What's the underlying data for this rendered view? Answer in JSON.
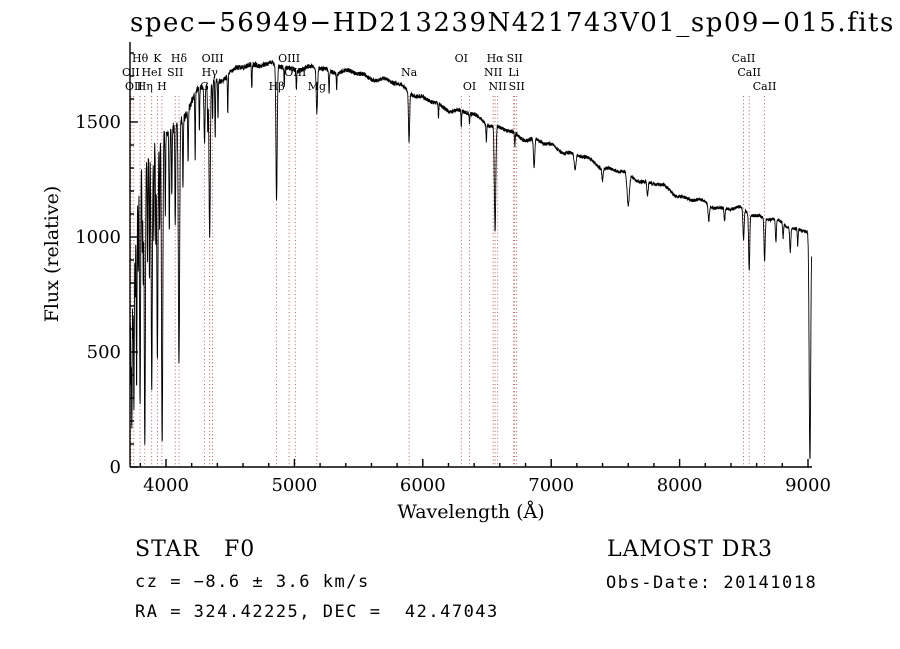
{
  "title": "spec−56949−HD213239N421743V01_sp09−015.fits",
  "axes": {
    "xlabel": "Wavelength (Å)",
    "ylabel": "Flux (relative)"
  },
  "annotations": {
    "class_line": "STAR   F0",
    "survey": "LAMOST DR3",
    "cz": "cz = −8.6 ± 3.6 km/s",
    "obs_date": "Obs-Date: 20141018",
    "coords": "RA = 324.42225, DEC =  42.47043"
  },
  "chart_data": {
    "type": "line",
    "title": "spec−56949−HD213239N421743V01_sp09−015.fits",
    "xlabel": "Wavelength (Å)",
    "ylabel": "Flux (relative)",
    "xlim": [
      3720,
      9030
    ],
    "ylim": [
      0,
      1850
    ],
    "xticks": [
      4000,
      5000,
      6000,
      7000,
      8000,
      9000
    ],
    "yticks": [
      0,
      500,
      1000,
      1500
    ],
    "x_minor_step": 200,
    "y_minor_step": 100,
    "line_color": "#000000",
    "feature_line_color": "#a03a32",
    "features": [
      {
        "label": "OII",
        "wl": 3727,
        "row": 2
      },
      {
        "label": "OII",
        "wl": 3749,
        "row": 3
      },
      {
        "label": "Hθ",
        "wl": 3798,
        "row": 1
      },
      {
        "label": "Hη",
        "wl": 3835,
        "row": 3
      },
      {
        "label": "HeI",
        "wl": 3889,
        "row": 2
      },
      {
        "label": "K",
        "wl": 3933,
        "row": 1
      },
      {
        "label": "H",
        "wl": 3968,
        "row": 3
      },
      {
        "label": "SII",
        "wl": 4072,
        "row": 2
      },
      {
        "label": "Hδ",
        "wl": 4101,
        "row": 1
      },
      {
        "label": "G",
        "wl": 4300,
        "row": 3
      },
      {
        "label": "Hγ",
        "wl": 4340,
        "row": 2
      },
      {
        "label": "OIII",
        "wl": 4363,
        "row": 1
      },
      {
        "label": "Hβ",
        "wl": 4861,
        "row": 3
      },
      {
        "label": "OIII",
        "wl": 4959,
        "row": 1
      },
      {
        "label": "OIII",
        "wl": 5007,
        "row": 2
      },
      {
        "label": "Mg",
        "wl": 5175,
        "row": 3
      },
      {
        "label": "Na",
        "wl": 5893,
        "row": 2
      },
      {
        "label": "OI",
        "wl": 6300,
        "row": 1
      },
      {
        "label": "OI",
        "wl": 6364,
        "row": 3
      },
      {
        "label": "NII",
        "wl": 6548,
        "row": 2
      },
      {
        "label": "Hα",
        "wl": 6563,
        "row": 1
      },
      {
        "label": "NII",
        "wl": 6583,
        "row": 3
      },
      {
        "label": "Li",
        "wl": 6708,
        "row": 2
      },
      {
        "label": "SII",
        "wl": 6716,
        "row": 1
      },
      {
        "label": "SII",
        "wl": 6731,
        "row": 3
      },
      {
        "label": "CaII",
        "wl": 8498,
        "row": 1
      },
      {
        "label": "CaII",
        "wl": 8542,
        "row": 2
      },
      {
        "label": "CaII",
        "wl": 8662,
        "row": 3
      }
    ],
    "continuum": [
      [
        3715,
        700
      ],
      [
        3725,
        950
      ],
      [
        3745,
        1180
      ],
      [
        3770,
        1260
      ],
      [
        3800,
        1320
      ],
      [
        3850,
        1370
      ],
      [
        3900,
        1400
      ],
      [
        3950,
        1430
      ],
      [
        4000,
        1460
      ],
      [
        4080,
        1490
      ],
      [
        4160,
        1550
      ],
      [
        4260,
        1630
      ],
      [
        4360,
        1670
      ],
      [
        4460,
        1700
      ],
      [
        4560,
        1730
      ],
      [
        4660,
        1755
      ],
      [
        4760,
        1760
      ],
      [
        4860,
        1740
      ],
      [
        4960,
        1730
      ],
      [
        5060,
        1730
      ],
      [
        5160,
        1730
      ],
      [
        5260,
        1730
      ],
      [
        5360,
        1725
      ],
      [
        5460,
        1715
      ],
      [
        5560,
        1700
      ],
      [
        5660,
        1685
      ],
      [
        5760,
        1665
      ],
      [
        5860,
        1650
      ],
      [
        5960,
        1615
      ],
      [
        6060,
        1590
      ],
      [
        6160,
        1570
      ],
      [
        6260,
        1550
      ],
      [
        6360,
        1530
      ],
      [
        6460,
        1510
      ],
      [
        6560,
        1480
      ],
      [
        6660,
        1460
      ],
      [
        6760,
        1440
      ],
      [
        6860,
        1430
      ],
      [
        6960,
        1400
      ],
      [
        7060,
        1380
      ],
      [
        7160,
        1360
      ],
      [
        7260,
        1340
      ],
      [
        7360,
        1320
      ],
      [
        7460,
        1300
      ],
      [
        7560,
        1280
      ],
      [
        7660,
        1255
      ],
      [
        7760,
        1235
      ],
      [
        7860,
        1215
      ],
      [
        7960,
        1190
      ],
      [
        8060,
        1170
      ],
      [
        8160,
        1155
      ],
      [
        8260,
        1140
      ],
      [
        8360,
        1125
      ],
      [
        8460,
        1115
      ],
      [
        8560,
        1100
      ],
      [
        8660,
        1085
      ],
      [
        8760,
        1065
      ],
      [
        8860,
        1050
      ],
      [
        8960,
        1035
      ],
      [
        9030,
        1020
      ]
    ],
    "absorption_lines": [
      {
        "wl": 3718,
        "depth": 0.8,
        "sigma": 2.5
      },
      {
        "wl": 3727,
        "depth": 0.6,
        "sigma": 3
      },
      {
        "wl": 3734,
        "depth": 0.85,
        "sigma": 3
      },
      {
        "wl": 3742,
        "depth": 0.45,
        "sigma": 2.5
      },
      {
        "wl": 3750,
        "depth": 0.78,
        "sigma": 3.5
      },
      {
        "wl": 3760,
        "depth": 0.4,
        "sigma": 2.5
      },
      {
        "wl": 3771,
        "depth": 0.72,
        "sigma": 3.5
      },
      {
        "wl": 3784,
        "depth": 0.35,
        "sigma": 2.5
      },
      {
        "wl": 3798,
        "depth": 0.8,
        "sigma": 4
      },
      {
        "wl": 3815,
        "depth": 0.3,
        "sigma": 2.5
      },
      {
        "wl": 3823,
        "depth": 0.4,
        "sigma": 2.5
      },
      {
        "wl": 3835,
        "depth": 0.93,
        "sigma": 4.5
      },
      {
        "wl": 3856,
        "depth": 0.35,
        "sigma": 2.5
      },
      {
        "wl": 3871,
        "depth": 0.4,
        "sigma": 2.5
      },
      {
        "wl": 3889,
        "depth": 0.75,
        "sigma": 4.5
      },
      {
        "wl": 3905,
        "depth": 0.3,
        "sigma": 2.5
      },
      {
        "wl": 3920,
        "depth": 0.3,
        "sigma": 2.5
      },
      {
        "wl": 3933,
        "depth": 0.68,
        "sigma": 4.5
      },
      {
        "wl": 3950,
        "depth": 0.3,
        "sigma": 2.5
      },
      {
        "wl": 3970,
        "depth": 0.93,
        "sigma": 5
      },
      {
        "wl": 3995,
        "depth": 0.25,
        "sigma": 2.5
      },
      {
        "wl": 4026,
        "depth": 0.3,
        "sigma": 3
      },
      {
        "wl": 4045,
        "depth": 0.2,
        "sigma": 2.5
      },
      {
        "wl": 4072,
        "depth": 0.3,
        "sigma": 3
      },
      {
        "wl": 4101,
        "depth": 0.7,
        "sigma": 5
      },
      {
        "wl": 4132,
        "depth": 0.2,
        "sigma": 2.5
      },
      {
        "wl": 4172,
        "depth": 0.15,
        "sigma": 2.5
      },
      {
        "wl": 4227,
        "depth": 0.18,
        "sigma": 2.5
      },
      {
        "wl": 4260,
        "depth": 0.12,
        "sigma": 2.5
      },
      {
        "wl": 4300,
        "depth": 0.15,
        "sigma": 4
      },
      {
        "wl": 4325,
        "depth": 0.12,
        "sigma": 2.5
      },
      {
        "wl": 4340,
        "depth": 0.4,
        "sigma": 5
      },
      {
        "wl": 4363,
        "depth": 0.1,
        "sigma": 2.5
      },
      {
        "wl": 4383,
        "depth": 0.15,
        "sigma": 2.5
      },
      {
        "wl": 4405,
        "depth": 0.1,
        "sigma": 2.5
      },
      {
        "wl": 4481,
        "depth": 0.1,
        "sigma": 2.5
      },
      {
        "wl": 4668,
        "depth": 0.06,
        "sigma": 3
      },
      {
        "wl": 4861,
        "depth": 0.34,
        "sigma": 5
      },
      {
        "wl": 4921,
        "depth": 0.05,
        "sigma": 2.5
      },
      {
        "wl": 5015,
        "depth": 0.05,
        "sigma": 2.5
      },
      {
        "wl": 5175,
        "depth": 0.11,
        "sigma": 5
      },
      {
        "wl": 5270,
        "depth": 0.06,
        "sigma": 3
      },
      {
        "wl": 5329,
        "depth": 0.04,
        "sigma": 2.5
      },
      {
        "wl": 5893,
        "depth": 0.13,
        "sigma": 4.5
      },
      {
        "wl": 6122,
        "depth": 0.04,
        "sigma": 2.5
      },
      {
        "wl": 6300,
        "depth": 0.05,
        "sigma": 2.5
      },
      {
        "wl": 6364,
        "depth": 0.03,
        "sigma": 2.5
      },
      {
        "wl": 6495,
        "depth": 0.05,
        "sigma": 3
      },
      {
        "wl": 6563,
        "depth": 0.31,
        "sigma": 5.5
      },
      {
        "wl": 6717,
        "depth": 0.04,
        "sigma": 2.5
      },
      {
        "wl": 6867,
        "depth": 0.09,
        "sigma": 5
      },
      {
        "wl": 7186,
        "depth": 0.05,
        "sigma": 7
      },
      {
        "wl": 7400,
        "depth": 0.04,
        "sigma": 5
      },
      {
        "wl": 7600,
        "depth": 0.11,
        "sigma": 9
      },
      {
        "wl": 7750,
        "depth": 0.05,
        "sigma": 5
      },
      {
        "wl": 8227,
        "depth": 0.06,
        "sigma": 5
      },
      {
        "wl": 8350,
        "depth": 0.05,
        "sigma": 4
      },
      {
        "wl": 8498,
        "depth": 0.12,
        "sigma": 4.5
      },
      {
        "wl": 8542,
        "depth": 0.22,
        "sigma": 4.5
      },
      {
        "wl": 8662,
        "depth": 0.17,
        "sigma": 4.5
      },
      {
        "wl": 8750,
        "depth": 0.09,
        "sigma": 4
      },
      {
        "wl": 8806,
        "depth": 0.06,
        "sigma": 3
      },
      {
        "wl": 8862,
        "depth": 0.1,
        "sigma": 4
      },
      {
        "wl": 8920,
        "depth": 0.07,
        "sigma": 3
      },
      {
        "wl": 9015,
        "depth": 0.97,
        "sigma": 6
      }
    ],
    "noise": {
      "seed": 42,
      "note": "stochastic jitter, stronger at blue end"
    }
  }
}
